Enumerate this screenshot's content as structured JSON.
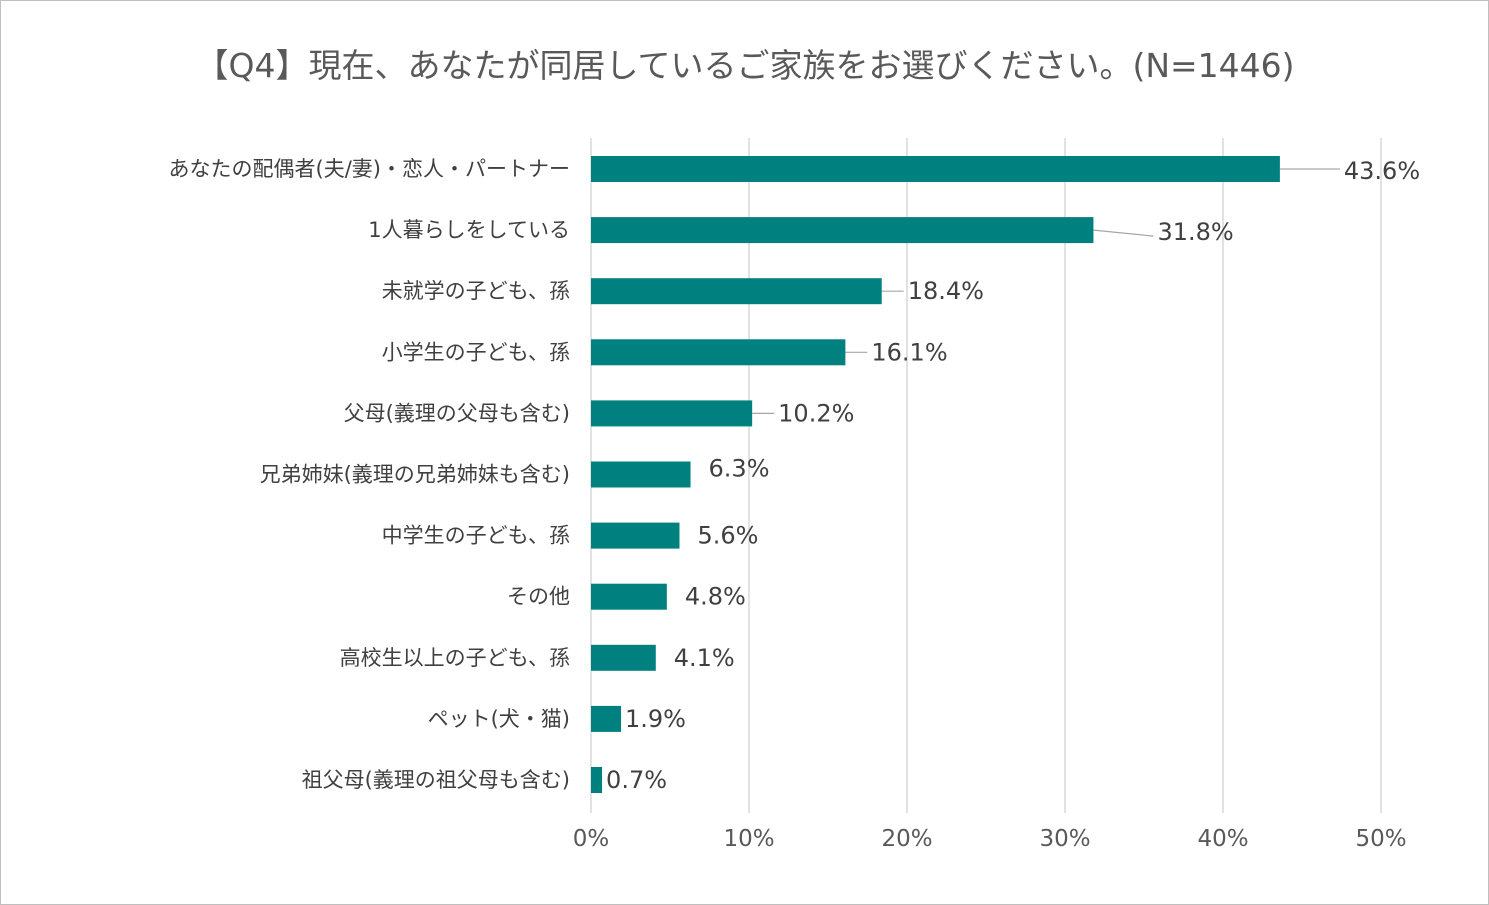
{
  "chart_data": {
    "type": "bar",
    "orientation": "horizontal",
    "title": "【Q4】現在、あなたが同居しているご家族をお選びください。(N=1446)",
    "categories": [
      "あなたの配偶者(夫/妻)・恋人・パートナー",
      "1人暮らしをしている",
      "未就学の子ども、孫",
      "小学生の子ども、孫",
      "父母(義理の父母も含む)",
      "兄弟姉妹(義理の兄弟姉妹も含む)",
      "中学生の子ども、孫",
      "その他",
      "高校生以上の子ども、孫",
      "ペット(犬・猫)",
      "祖父母(義理の祖父母も含む)"
    ],
    "values": [
      43.6,
      31.8,
      18.4,
      16.1,
      10.2,
      6.3,
      5.6,
      4.8,
      4.1,
      1.9,
      0.7
    ],
    "data_labels": [
      "43.6%",
      "31.8%",
      "18.4%",
      "16.1%",
      "10.2%",
      "6.3%",
      "5.6%",
      "4.8%",
      "4.1%",
      "1.9%",
      "0.7%"
    ],
    "xlim": [
      0,
      50
    ],
    "x_ticks": [
      0,
      10,
      20,
      30,
      40,
      50
    ],
    "x_tick_labels": [
      "0%",
      "10%",
      "20%",
      "30%",
      "40%",
      "50%"
    ],
    "xlabel": "",
    "ylabel": "",
    "grid": "vertical",
    "legend": "none",
    "bar_color": "#00807F",
    "grid_color": "#d9d9d9",
    "leader_color": "#a6a6a6"
  }
}
